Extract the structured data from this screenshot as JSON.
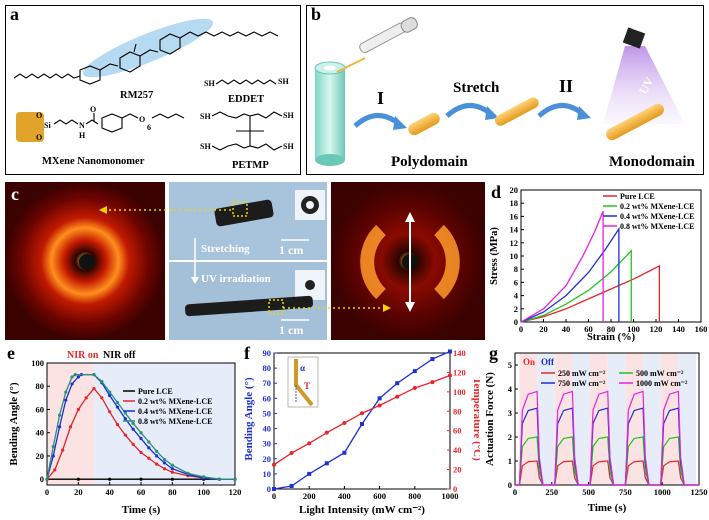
{
  "panels": {
    "a": {
      "label": "a",
      "molecules": [
        "RM257",
        "EDDET",
        "MXene Nanomonomer",
        "PETMP"
      ],
      "atoms": {
        "si": "Si",
        "o": "O",
        "n": "N",
        "h": "H",
        "sh": "SH",
        "subscript": "6"
      }
    },
    "b": {
      "label": "b",
      "steps": [
        "I",
        "Stretch",
        "II"
      ],
      "states": [
        "Polydomain",
        "Monodomain"
      ],
      "uv": "UV"
    },
    "c": {
      "label": "c",
      "steps": [
        "Stretching",
        "UV irradiation"
      ],
      "scale": "1 cm"
    },
    "d": {
      "label": "d"
    },
    "e": {
      "label": "e",
      "nir_on": "NIR on",
      "nir_off": "NIR off"
    },
    "f": {
      "label": "f",
      "alpha": "α",
      "t": "T"
    },
    "g": {
      "label": "g",
      "on": "On",
      "off": "Off"
    }
  },
  "chart_data": [
    {
      "panel": "d",
      "type": "line",
      "xlabel": "Strain (%)",
      "ylabel": "Stress (MPa)",
      "xlim": [
        0,
        160
      ],
      "ylim": [
        0,
        20
      ],
      "xticks": [
        0,
        20,
        40,
        60,
        80,
        100,
        120,
        140,
        160
      ],
      "yticks": [
        0,
        2,
        4,
        6,
        8,
        10,
        12,
        14,
        16,
        18,
        20
      ],
      "legend_position": "top-right",
      "series": [
        {
          "name": "Pure LCE",
          "color": "#e8252b",
          "points": [
            [
              0,
              0
            ],
            [
              20,
              0.8
            ],
            [
              40,
              2
            ],
            [
              60,
              3.5
            ],
            [
              80,
              5
            ],
            [
              100,
              6.5
            ],
            [
              123,
              8.5
            ],
            [
              123,
              0
            ]
          ]
        },
        {
          "name": "0.2 wt% MXene-LCE",
          "color": "#22c41f",
          "points": [
            [
              0,
              0
            ],
            [
              20,
              1
            ],
            [
              40,
              2.7
            ],
            [
              60,
              4.8
            ],
            [
              80,
              7.6
            ],
            [
              98,
              10.8
            ],
            [
              98,
              0
            ]
          ]
        },
        {
          "name": "0.4 wt% MXene-LCE",
          "color": "#1d2fd6",
          "points": [
            [
              0,
              0
            ],
            [
              20,
              1.5
            ],
            [
              40,
              4
            ],
            [
              60,
              7.5
            ],
            [
              75,
              11
            ],
            [
              87,
              14.1
            ],
            [
              87,
              0
            ]
          ]
        },
        {
          "name": "0.8 wt% MXene-LCE",
          "color": "#e523e0",
          "points": [
            [
              0,
              0
            ],
            [
              20,
              2
            ],
            [
              40,
              5.5
            ],
            [
              55,
              10
            ],
            [
              65,
              13.5
            ],
            [
              73,
              16.8
            ],
            [
              73,
              0
            ]
          ]
        }
      ]
    },
    {
      "panel": "e",
      "type": "line",
      "xlabel": "Time (s)",
      "ylabel": "Bending Angle (°)",
      "xlim": [
        0,
        120
      ],
      "ylim": [
        -5,
        100
      ],
      "xticks": [
        0,
        20,
        40,
        60,
        80,
        100,
        120
      ],
      "yticks": [
        0,
        20,
        40,
        60,
        80,
        100
      ],
      "legend_position": "right",
      "series": [
        {
          "name": "Pure LCE",
          "color": "#000000",
          "points": [
            [
              0,
              0
            ],
            [
              20,
              0
            ],
            [
              40,
              0
            ],
            [
              60,
              0
            ],
            [
              80,
              0
            ],
            [
              100,
              0
            ],
            [
              120,
              0
            ]
          ]
        },
        {
          "name": "0.2 wt% MXene-LCE",
          "color": "#e8252b",
          "points": [
            [
              0,
              0
            ],
            [
              5,
              8
            ],
            [
              10,
              25
            ],
            [
              15,
              45
            ],
            [
              20,
              60
            ],
            [
              25,
              70
            ],
            [
              30,
              78
            ],
            [
              35,
              70
            ],
            [
              40,
              58
            ],
            [
              45,
              47
            ],
            [
              50,
              38
            ],
            [
              55,
              30
            ],
            [
              60,
              23
            ],
            [
              65,
              18
            ],
            [
              70,
              13
            ],
            [
              75,
              9
            ],
            [
              80,
              6
            ],
            [
              90,
              3
            ],
            [
              100,
              1
            ],
            [
              110,
              0
            ],
            [
              120,
              0
            ]
          ]
        },
        {
          "name": "0.4 wt% MXene-LCE",
          "color": "#1d2fd6",
          "points": [
            [
              0,
              0
            ],
            [
              4,
              20
            ],
            [
              8,
              45
            ],
            [
              12,
              68
            ],
            [
              16,
              82
            ],
            [
              20,
              88
            ],
            [
              22,
              90
            ],
            [
              30,
              90
            ],
            [
              35,
              83
            ],
            [
              40,
              72
            ],
            [
              45,
              62
            ],
            [
              50,
              52
            ],
            [
              55,
              43
            ],
            [
              60,
              35
            ],
            [
              65,
              27
            ],
            [
              70,
              20
            ],
            [
              75,
              14
            ],
            [
              80,
              9
            ],
            [
              90,
              4
            ],
            [
              100,
              1
            ],
            [
              110,
              0
            ],
            [
              120,
              0
            ]
          ]
        },
        {
          "name": "0.8 wt% MXene-LCE",
          "color": "#2a8f7a",
          "points": [
            [
              0,
              0
            ],
            [
              4,
              28
            ],
            [
              8,
              55
            ],
            [
              12,
              75
            ],
            [
              16,
              88
            ],
            [
              18,
              90
            ],
            [
              30,
              90
            ],
            [
              35,
              84
            ],
            [
              40,
              75
            ],
            [
              45,
              66
            ],
            [
              50,
              57
            ],
            [
              55,
              48
            ],
            [
              60,
              40
            ],
            [
              65,
              32
            ],
            [
              70,
              24
            ],
            [
              75,
              17
            ],
            [
              80,
              12
            ],
            [
              90,
              5
            ],
            [
              100,
              2
            ],
            [
              110,
              0
            ],
            [
              120,
              0
            ]
          ]
        }
      ]
    },
    {
      "panel": "f",
      "type": "line",
      "xlabel": "Light Intensity (mW cm⁻²)",
      "ylabel_left": "Bending Angle (°)",
      "ylabel_right": "Temperature (°C)",
      "xlim": [
        0,
        1000
      ],
      "ylim_left": [
        0,
        90
      ],
      "ylim_right": [
        0,
        140
      ],
      "xticks": [
        0,
        200,
        400,
        600,
        800,
        1000
      ],
      "yticks_left": [
        0,
        10,
        20,
        30,
        40,
        50,
        60,
        70,
        80,
        90
      ],
      "yticks_right": [
        0,
        20,
        40,
        60,
        80,
        100,
        120,
        140
      ],
      "series": [
        {
          "name": "Bending Angle",
          "axis": "left",
          "color": "#1d2fd6",
          "points": [
            [
              0,
              0
            ],
            [
              100,
              2
            ],
            [
              200,
              10
            ],
            [
              300,
              17
            ],
            [
              400,
              24
            ],
            [
              500,
              43
            ],
            [
              600,
              60
            ],
            [
              700,
              70
            ],
            [
              800,
              78
            ],
            [
              900,
              86
            ],
            [
              1000,
              91
            ]
          ]
        },
        {
          "name": "Temperature",
          "axis": "right",
          "color": "#e8252b",
          "points": [
            [
              0,
              25
            ],
            [
              100,
              37
            ],
            [
              200,
              47
            ],
            [
              300,
              58
            ],
            [
              400,
              68
            ],
            [
              500,
              78
            ],
            [
              600,
              86
            ],
            [
              700,
              95
            ],
            [
              800,
              104
            ],
            [
              900,
              110
            ],
            [
              1000,
              117
            ]
          ]
        }
      ]
    },
    {
      "panel": "g",
      "type": "line",
      "xlabel": "Time (s)",
      "ylabel": "Actuation Force (N)",
      "xlim": [
        0,
        1250
      ],
      "ylim": [
        0,
        5.5
      ],
      "xticks": [
        0,
        250,
        500,
        750,
        1000,
        1250
      ],
      "yticks": [
        0,
        1,
        2,
        3,
        4,
        5
      ],
      "cycle_start": [
        30,
        270,
        510,
        750,
        990
      ],
      "on_duration": 120,
      "legend_position": "top",
      "series": [
        {
          "name": "250 mW cm⁻²",
          "color": "#e8252b",
          "level": 1.0
        },
        {
          "name": "500 mW cm⁻²",
          "color": "#22c41f",
          "level": 2.0
        },
        {
          "name": "750 mW cm⁻²",
          "color": "#1d2fd6",
          "level": 3.2
        },
        {
          "name": "1000 mW cm⁻²",
          "color": "#e523e0",
          "level": 3.9
        }
      ]
    }
  ]
}
